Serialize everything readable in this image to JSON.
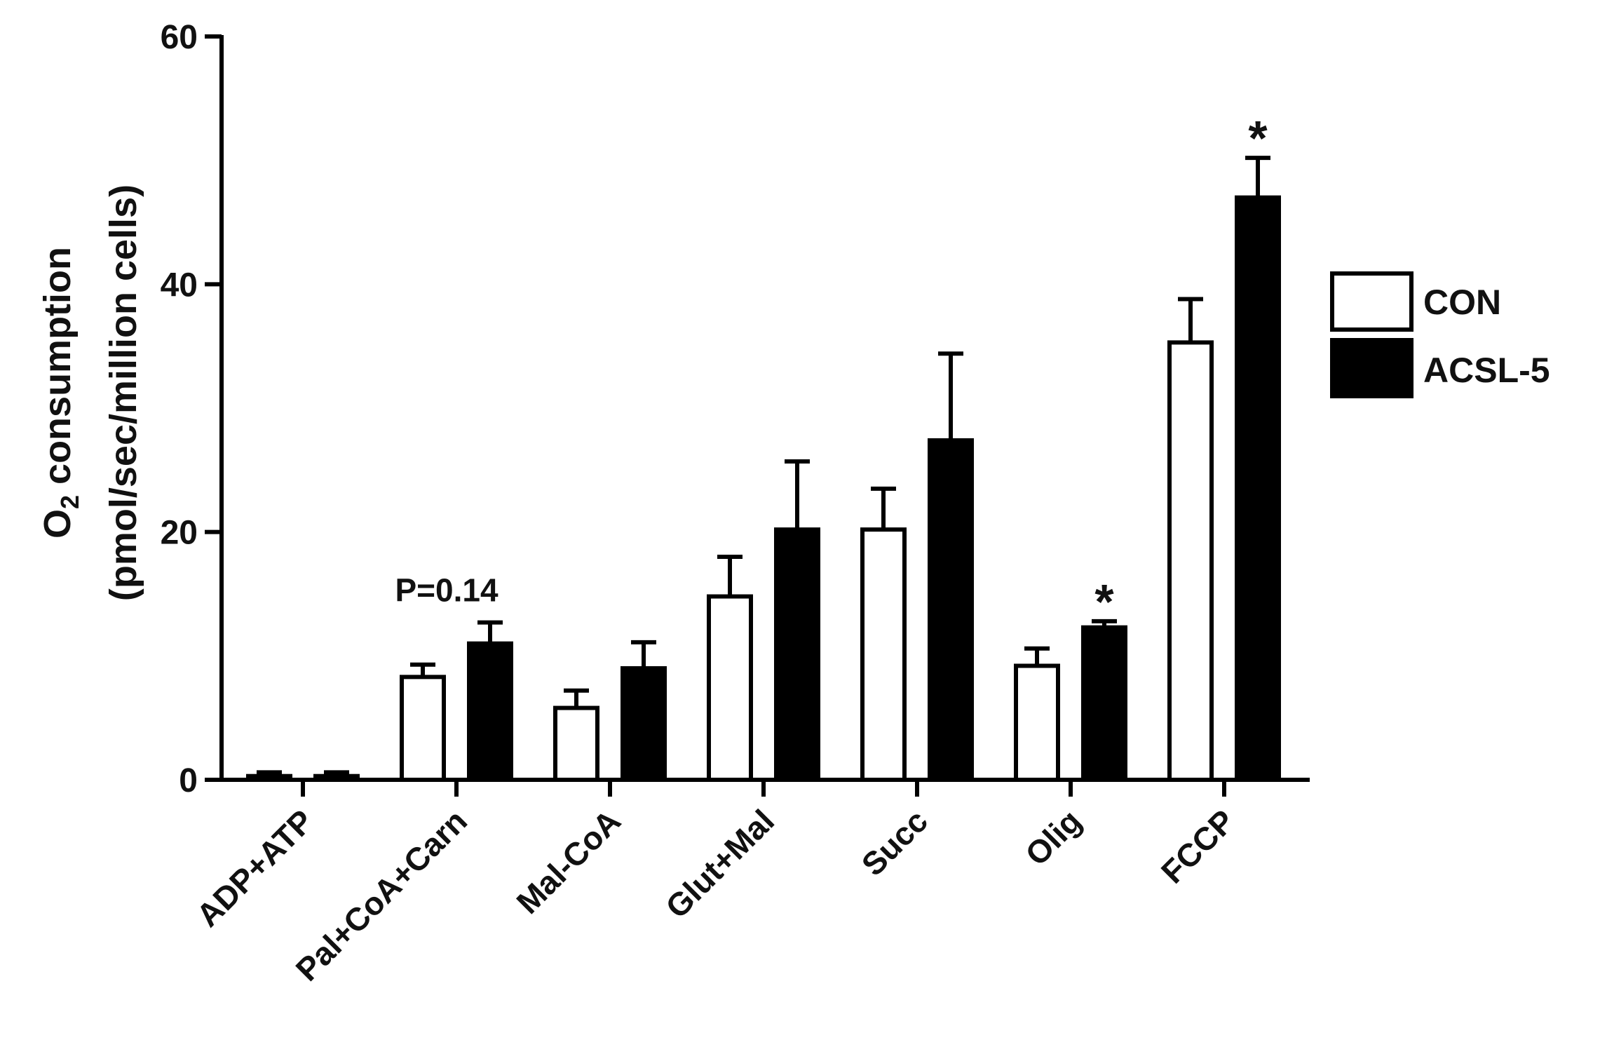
{
  "chart_data": {
    "type": "bar",
    "title": "",
    "xlabel": "",
    "ylabel": {
      "line1_main": "O",
      "line1_subscript": "2",
      "line1_rest": " consumption",
      "line2": "(pmol/sec/million cells)"
    },
    "ylim": [
      0,
      60
    ],
    "yticks": [
      0,
      20,
      40,
      60
    ],
    "grid": false,
    "legend_position": "right",
    "categories": [
      "ADP+ATP",
      "Pal+CoA+Carn",
      "Mal-CoA",
      "Glut+Mal",
      "Succ",
      "Olig",
      "FCCP"
    ],
    "series": [
      {
        "name": "CON",
        "fill": "#ffffff",
        "values": [
          0.3,
          8.3,
          5.8,
          14.8,
          20.2,
          9.2,
          35.3
        ],
        "error": [
          0.3,
          1.0,
          1.4,
          3.2,
          3.3,
          1.4,
          3.5
        ]
      },
      {
        "name": "ACSL-5",
        "fill": "#000000",
        "values": [
          0.3,
          11.0,
          9.0,
          20.2,
          27.4,
          12.3,
          47.0
        ],
        "error": [
          0.3,
          1.7,
          2.1,
          5.5,
          7.0,
          0.5,
          3.2
        ]
      }
    ],
    "annotations": [
      {
        "category": "Pal+CoA+Carn",
        "text": "P=0.14"
      },
      {
        "category": "Olig",
        "text": "*"
      },
      {
        "category": "FCCP",
        "text": "*"
      }
    ]
  }
}
